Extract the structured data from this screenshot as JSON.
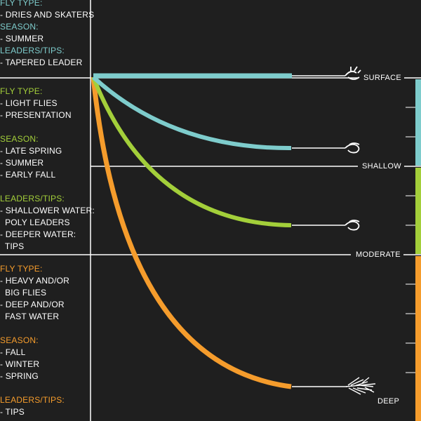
{
  "colors": {
    "background": "#1f1f1f",
    "line": "#ffffff",
    "surface": "#7ecccc",
    "shallow": "#a3cf3a",
    "deep": "#f59c2c"
  },
  "panels": [
    {
      "id": "surface",
      "color": "#7ecccc",
      "groups": [
        {
          "heading": "FLY TYPE:",
          "items": [
            "- DRIES AND SKATERS"
          ]
        },
        {
          "heading": "SEASON:",
          "items": [
            "- SUMMER"
          ]
        },
        {
          "heading": "LEADERS/TIPS:",
          "items": [
            "- TAPERED LEADER"
          ]
        }
      ]
    },
    {
      "id": "shallow",
      "color": "#a3cf3a",
      "groups": [
        {
          "heading": "FLY TYPE:",
          "items": [
            "- LIGHT FLIES",
            "- PRESENTATION"
          ]
        },
        {
          "heading": "SEASON:",
          "items": [
            "- LATE SPRING",
            "- SUMMER",
            "- EARLY FALL"
          ]
        },
        {
          "heading": "LEADERS/TIPS:",
          "items": [
            "- SHALLOWER WATER:",
            "  POLY LEADERS",
            "- DEEPER WATER:",
            "  TIPS"
          ]
        }
      ]
    },
    {
      "id": "deep",
      "color": "#f59c2c",
      "groups": [
        {
          "heading": "FLY TYPE:",
          "items": [
            "- HEAVY AND/OR",
            "  BIG FLIES",
            "- DEEP AND/OR",
            "  FAST WATER"
          ]
        },
        {
          "heading": "SEASON:",
          "items": [
            "- FALL",
            "- WINTER",
            "- SPRING"
          ]
        },
        {
          "heading": "LEADERS/TIPS:",
          "items": [
            "- TIPS"
          ]
        }
      ]
    }
  ],
  "depth_levels": {
    "surface": "SURFACE",
    "shallow": "SHALLOW",
    "moderate": "MODERATE",
    "deep": "DEEP"
  }
}
